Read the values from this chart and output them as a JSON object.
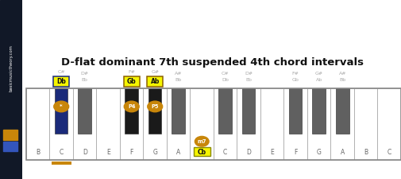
{
  "title": "D-flat dominant 7th suspended 4th chord intervals",
  "white_keys": [
    "B",
    "C",
    "D",
    "E",
    "F",
    "G",
    "A",
    "Cb",
    "C",
    "D",
    "E",
    "F",
    "G",
    "A",
    "B",
    "C"
  ],
  "black_key_after_white": [
    1,
    2,
    4,
    5,
    6,
    8,
    9,
    11,
    12,
    13
  ],
  "black_key_labels": [
    [
      "C#",
      "Db"
    ],
    [
      "D#",
      "Eb"
    ],
    [
      "F#",
      "Gb"
    ],
    [
      "G#",
      "Ab"
    ],
    [
      "A#",
      "Bb"
    ],
    [
      "C#",
      "Db"
    ],
    [
      "D#",
      "Eb"
    ],
    [
      "F#",
      "Gb"
    ],
    [
      "G#",
      "Ab"
    ],
    [
      "A#",
      "Bb"
    ]
  ],
  "highlighted_black_keys": {
    "0": "Db",
    "2": "Gb",
    "3": "Ab"
  },
  "circle_labels_black": {
    "0": "*",
    "2": "P4",
    "3": "P5"
  },
  "white_circle_key": 7,
  "white_circle_label": "m7",
  "c_underline_key": 1,
  "n_white": 16,
  "gold_color": "#c8860a",
  "dark_blue_key": "#1a2a7a",
  "yellow_box": "#f5f500",
  "sidebar_bg": "#111827",
  "black_key_default": "#606060",
  "black_key_gb_ab": "#1a1a1a",
  "piano_border": "#888888",
  "white_key_border": "#aaaaaa",
  "label_color": "#888888",
  "dark_blue_border": "#1a2a7a",
  "gold_border": "#8b6000"
}
